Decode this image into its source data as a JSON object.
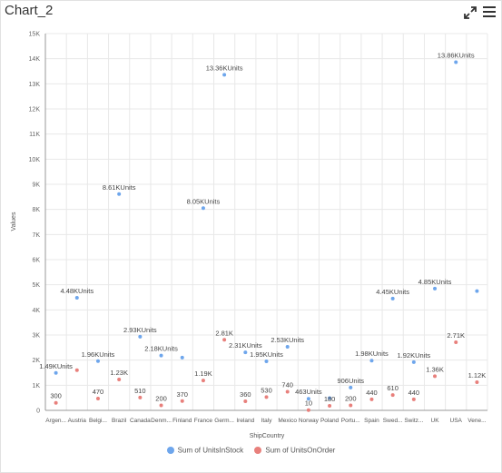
{
  "header": {
    "title": "Chart_2",
    "expand_icon": "expand-icon",
    "menu_icon": "hamburger-menu-icon"
  },
  "colors": {
    "stock": "#6ea6ec",
    "order": "#e8807c",
    "grid": "#e8e8e8",
    "axis": "#999999"
  },
  "chart_data": {
    "type": "scatter",
    "xlabel": "ShipCountry",
    "ylabel": "Values",
    "ylim": [
      0,
      15000
    ],
    "yticks": [
      "0",
      "1K",
      "2K",
      "3K",
      "4K",
      "5K",
      "6K",
      "7K",
      "8K",
      "9K",
      "10K",
      "11K",
      "12K",
      "13K",
      "14K",
      "15K"
    ],
    "grid": true,
    "legend_position": "bottom",
    "categories": [
      "Argen...",
      "Austria",
      "Belgi...",
      "Brazil",
      "Canada",
      "Denm...",
      "Finland",
      "France",
      "Germ...",
      "Ireland",
      "Italy",
      "Mexico",
      "Norway",
      "Poland",
      "Portu...",
      "Spain",
      "Swed...",
      "Switz...",
      "UK",
      "USA",
      "Vene..."
    ],
    "series": [
      {
        "name": "Sum of UnitsInStock",
        "values": [
          1490,
          4480,
          1960,
          8610,
          2930,
          2180,
          2100,
          8050,
          13360,
          2310,
          1950,
          2530,
          463,
          490,
          906,
          1980,
          4450,
          1920,
          4850,
          13860,
          4750
        ],
        "labels": [
          "1.49KUnits",
          "4.48KUnits",
          "1.96KUnits",
          "8.61KUnits",
          "2.93KUnits",
          "2.18KUnits",
          "",
          "8.05KUnits",
          "13.36KUnits",
          "2.31KUnits",
          "1.95KUnits",
          "2.53KUnits",
          "463Units",
          "",
          "906Units",
          "1.98KUnits",
          "4.45KUnits",
          "1.92KUnits",
          "4.85KUnits",
          "13.86KUnits",
          ""
        ]
      },
      {
        "name": "Sum of UnitsOnOrder",
        "values": [
          300,
          1600,
          470,
          1230,
          510,
          200,
          370,
          1190,
          2810,
          360,
          530,
          740,
          10,
          180,
          200,
          440,
          610,
          440,
          1360,
          2710,
          1120
        ],
        "labels": [
          "300",
          "",
          "470",
          "1.23K",
          "510",
          "200",
          "370",
          "1.19K",
          "2.81K",
          "360",
          "530",
          "740",
          "10",
          "180",
          "200",
          "440",
          "610",
          "440",
          "1.36K",
          "2.71K",
          "1.12K"
        ]
      }
    ]
  }
}
